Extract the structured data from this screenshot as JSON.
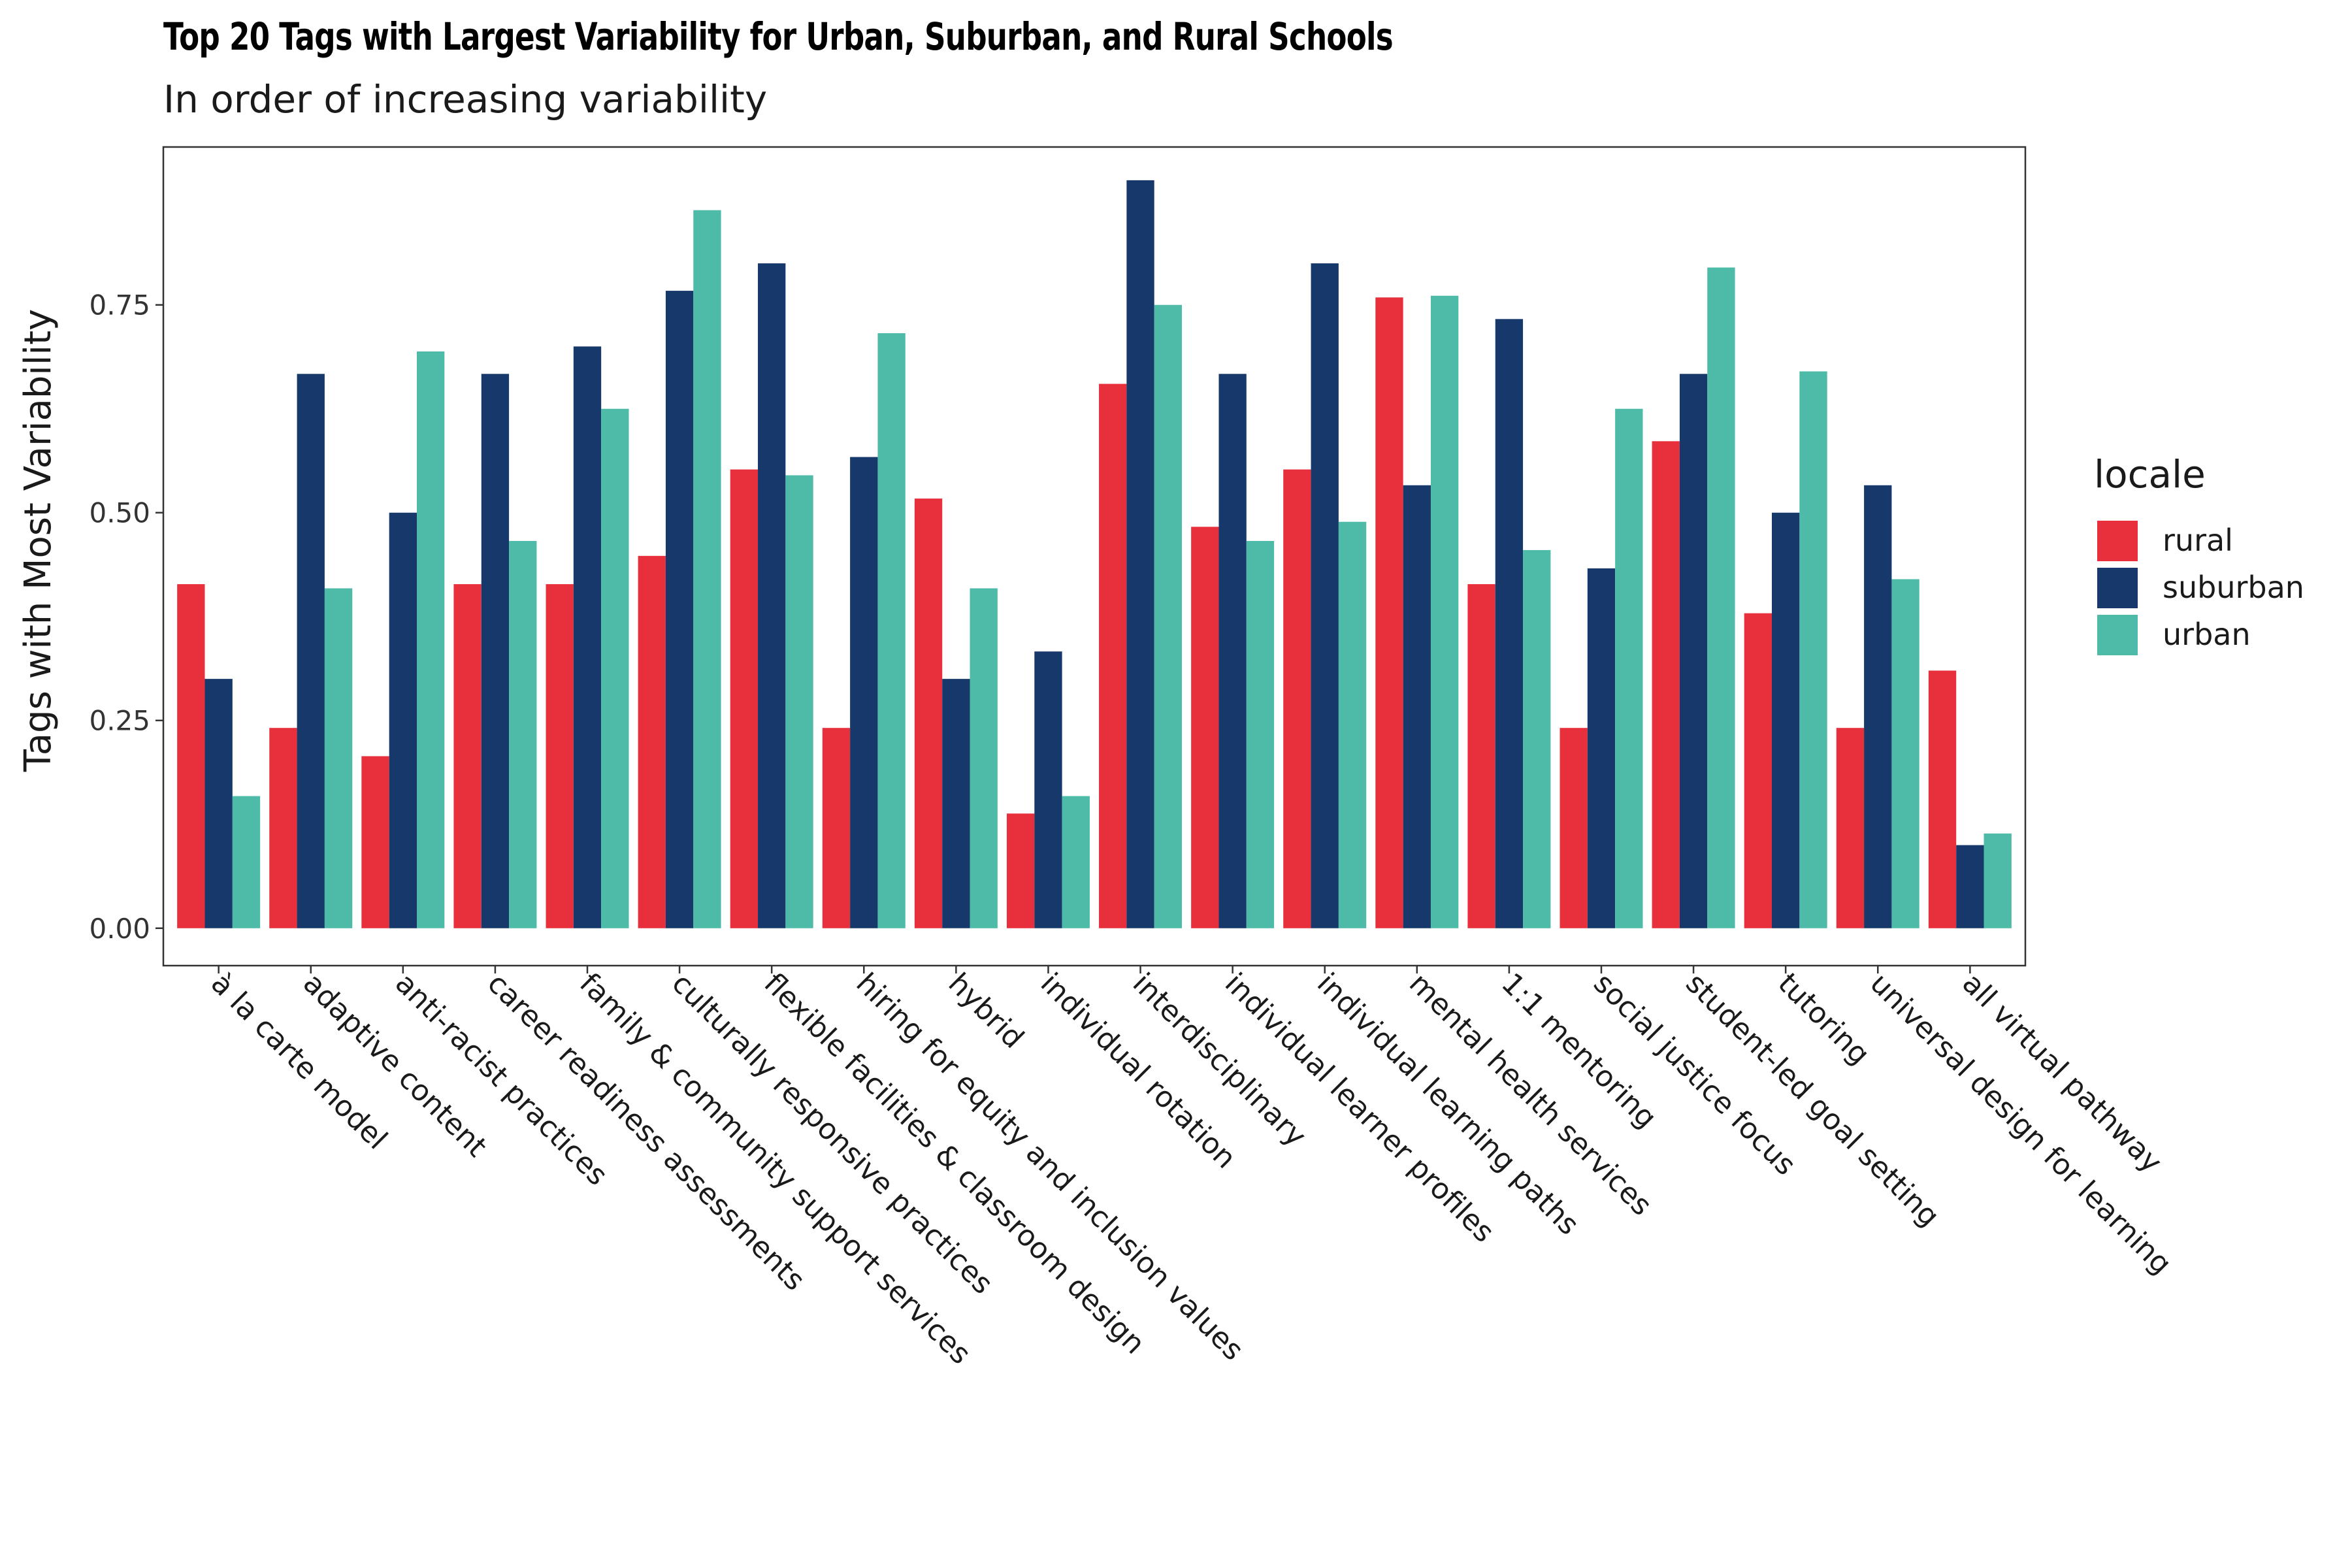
{
  "chart_data": {
    "type": "bar",
    "title": "Top 20 Tags with Largest Variability for Urban, Suburban, and Rural Schools",
    "subtitle": "In order of increasing variability",
    "xlabel": "",
    "ylabel": "Tags with Most Variability",
    "ylim": [
      -0.045,
      0.94
    ],
    "yticks": [
      0,
      0.25,
      0.5,
      0.75
    ],
    "ytick_labels": [
      "0.00",
      "0.25",
      "0.50",
      "0.75"
    ],
    "grid": false,
    "legend": {
      "title": "locale",
      "placement": "right"
    },
    "categories": [
      "à la carte model",
      "adaptive content",
      "anti-racist practices",
      "career readiness assessments",
      "family & community support services",
      "culturally responsive practices",
      "flexible facilities & classroom design",
      "hiring for equity and inclusion values",
      "hybrid",
      "individual rotation",
      "interdisciplinary",
      "individual learner profiles",
      "individual learning paths",
      "mental health services",
      "1:1 mentoring",
      "social justice focus",
      "student-led goal setting",
      "tutoring",
      "universal design for learning",
      "all virtual pathway"
    ],
    "series": [
      {
        "name": "rural",
        "color": "#E8303D",
        "values": [
          0.414,
          0.241,
          0.207,
          0.414,
          0.414,
          0.448,
          0.552,
          0.241,
          0.517,
          0.138,
          0.655,
          0.483,
          0.552,
          0.759,
          0.414,
          0.241,
          0.586,
          0.379,
          0.241,
          0.31
        ]
      },
      {
        "name": "suburban",
        "color": "#17386B",
        "values": [
          0.3,
          0.667,
          0.5,
          0.667,
          0.7,
          0.767,
          0.8,
          0.567,
          0.3,
          0.333,
          0.9,
          0.667,
          0.8,
          0.533,
          0.733,
          0.433,
          0.667,
          0.5,
          0.533,
          0.1
        ]
      },
      {
        "name": "urban",
        "color": "#4DBBA8",
        "values": [
          0.159,
          0.409,
          0.694,
          0.466,
          0.625,
          0.864,
          0.545,
          0.716,
          0.409,
          0.159,
          0.75,
          0.466,
          0.489,
          0.761,
          0.455,
          0.625,
          0.795,
          0.67,
          0.42,
          0.114
        ]
      }
    ]
  }
}
